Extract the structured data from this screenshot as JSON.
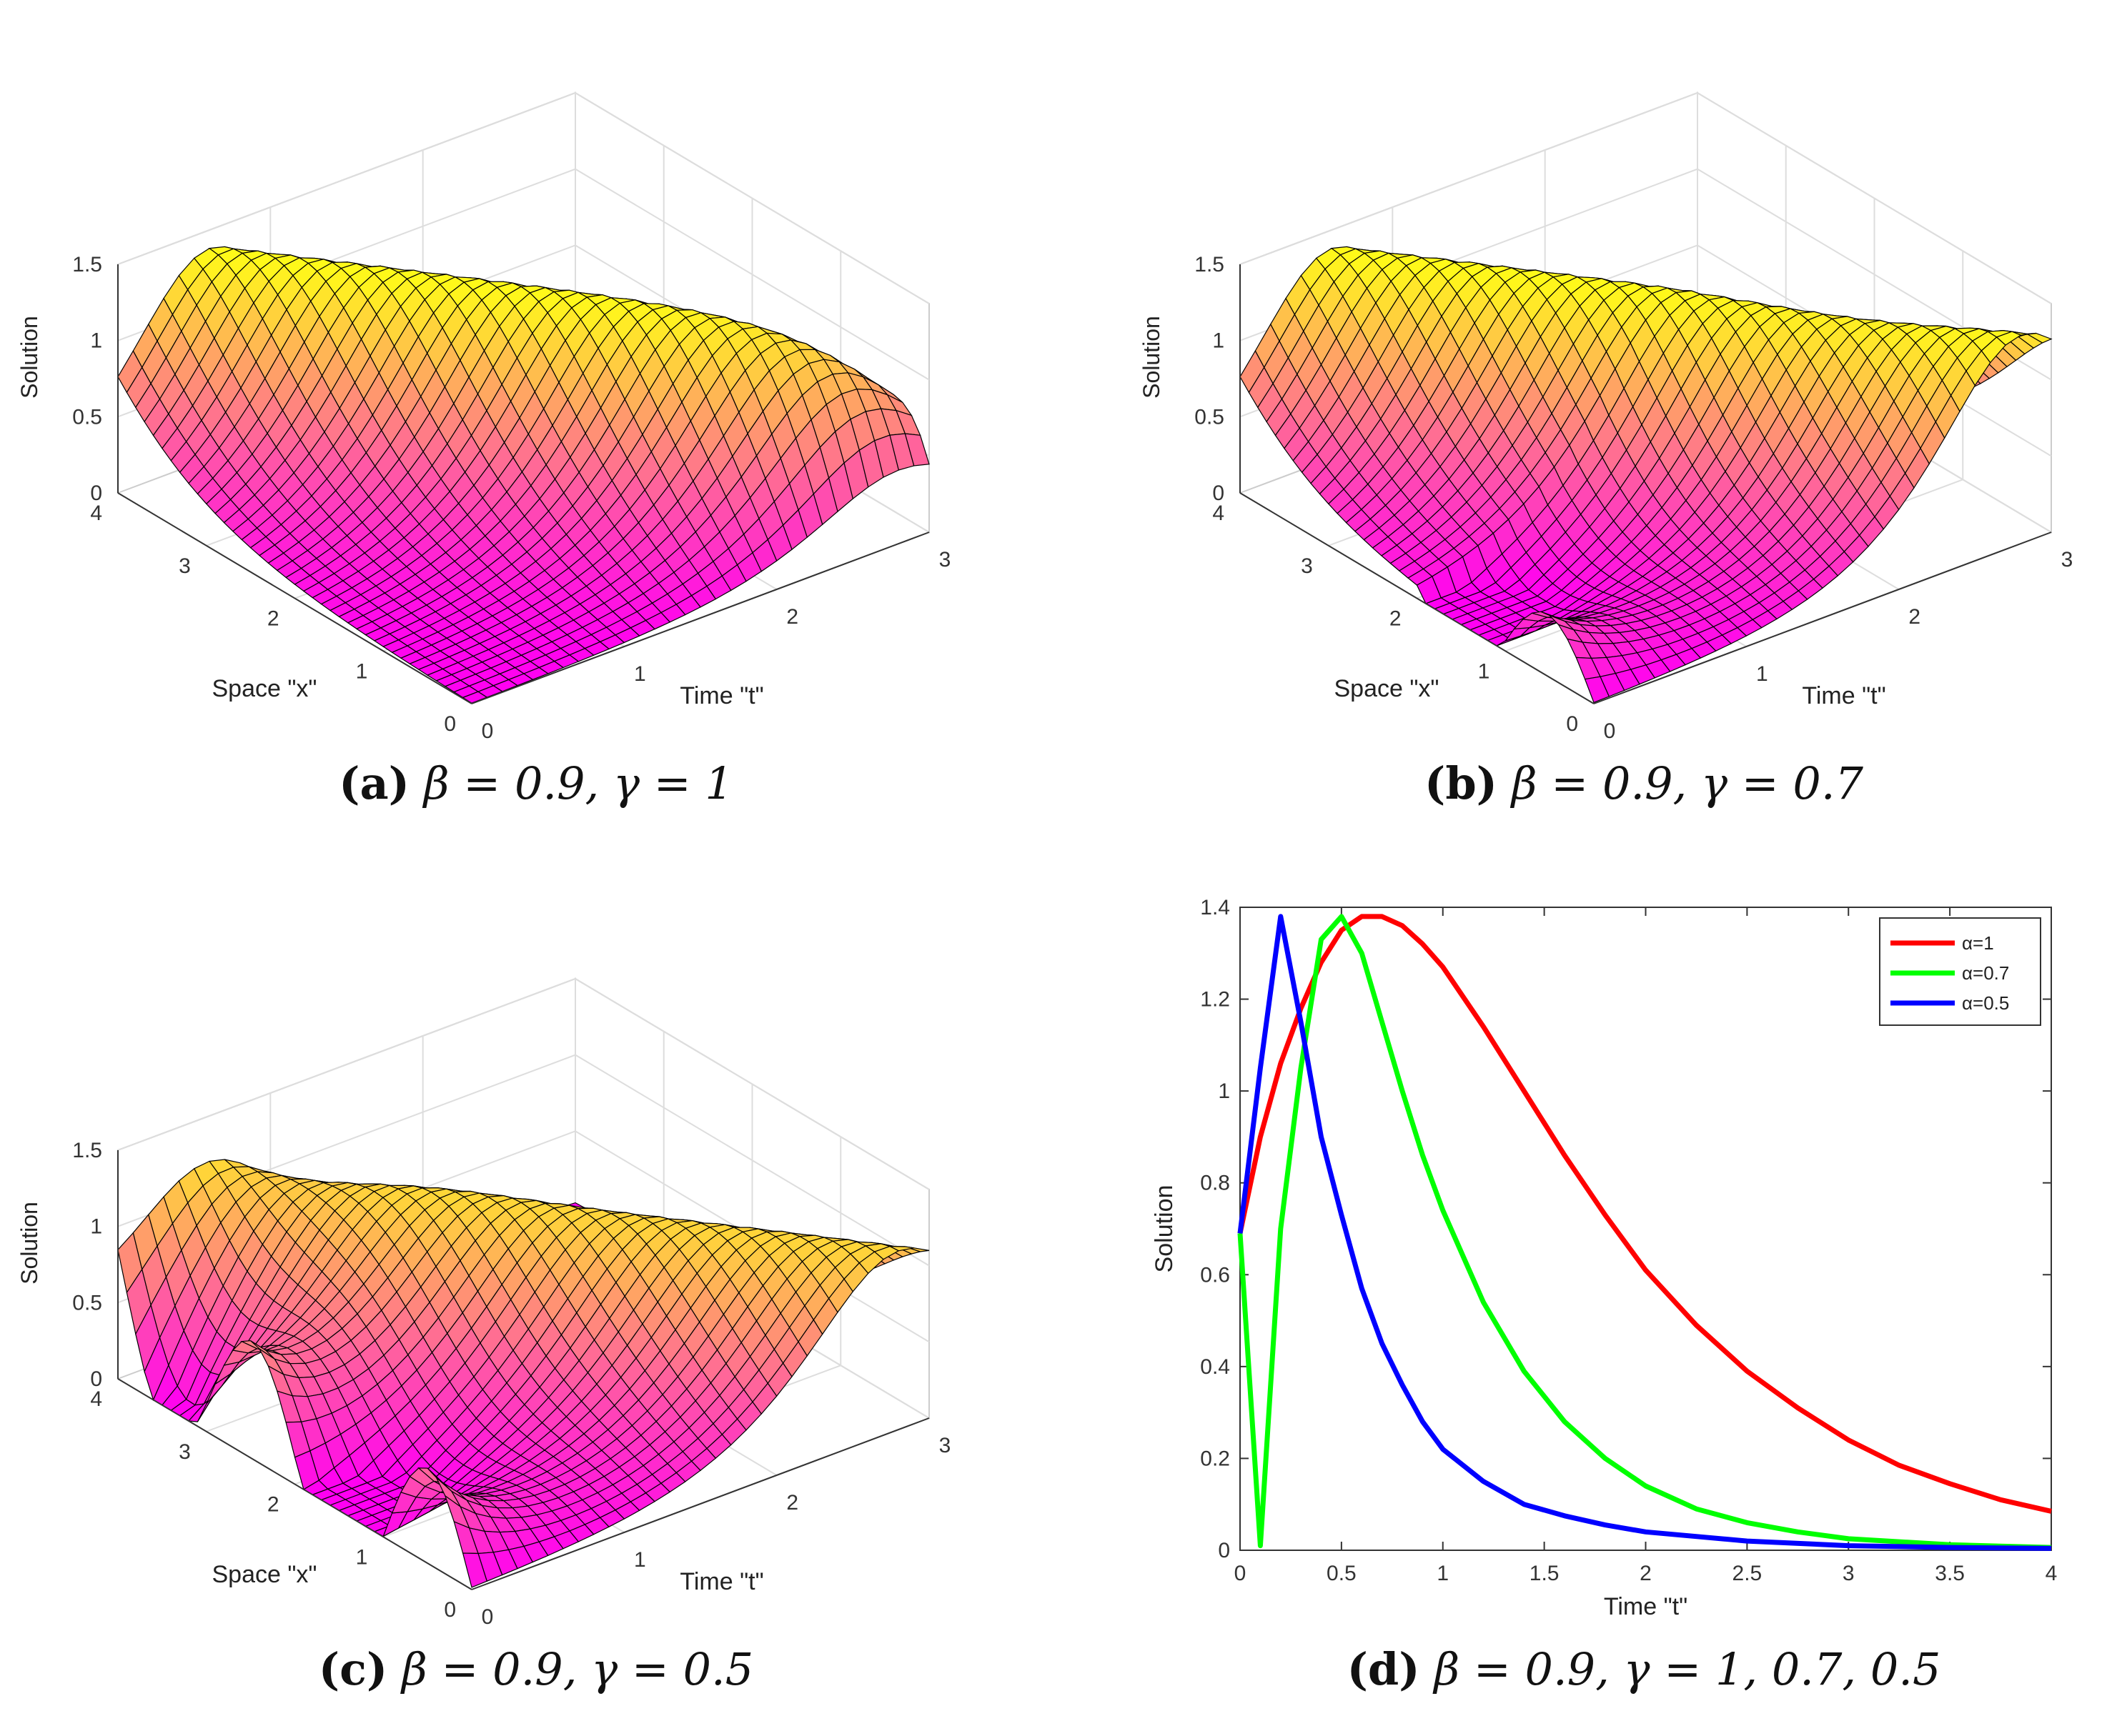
{
  "figure": {
    "panels": [
      {
        "id": "a",
        "caption": {
          "letter": "(a)",
          "params": "β = 0.9, γ = 1"
        },
        "chart": {
          "type": "surface3d",
          "zlabel": "Solution",
          "xlabel": "Space \"x\"",
          "ylabel": "Time \"t\"",
          "zticks": [
            "0",
            "0.5",
            "1",
            "1.5"
          ],
          "xticks": [
            "0",
            "1",
            "2",
            "3",
            "4"
          ],
          "yticks": [
            "0",
            "1",
            "2",
            "3"
          ]
        }
      },
      {
        "id": "b",
        "caption": {
          "letter": "(b)",
          "params": "β = 0.9, γ = 0.7"
        },
        "chart": {
          "type": "surface3d",
          "zlabel": "Solution",
          "xlabel": "Space \"x\"",
          "ylabel": "Time \"t\"",
          "zticks": [
            "0",
            "0.5",
            "1",
            "1.5"
          ],
          "xticks": [
            "0",
            "1",
            "2",
            "3",
            "4"
          ],
          "yticks": [
            "0",
            "1",
            "2",
            "3"
          ]
        }
      },
      {
        "id": "c",
        "caption": {
          "letter": "(c)",
          "params": "β = 0.9, γ = 0.5"
        },
        "chart": {
          "type": "surface3d",
          "zlabel": "Solution",
          "xlabel": "Space \"x\"",
          "ylabel": "Time \"t\"",
          "zticks": [
            "0",
            "0.5",
            "1",
            "1.5"
          ],
          "xticks": [
            "0",
            "1",
            "2",
            "3",
            "4"
          ],
          "yticks": [
            "0",
            "1",
            "2",
            "3"
          ]
        }
      },
      {
        "id": "d",
        "caption": {
          "letter": "(d)",
          "params": "β = 0.9, γ = 1, 0.7, 0.5"
        }
      }
    ]
  },
  "chart_data": [
    {
      "type": "surface3d",
      "panel": "a",
      "zlabel": "Solution",
      "xlabel": "Space \"x\"",
      "ylabel": "Time \"t\"",
      "zlim": [
        0,
        1.5
      ],
      "xlim": [
        0,
        4
      ],
      "ylim": [
        0,
        3
      ]
    },
    {
      "type": "surface3d",
      "panel": "b",
      "zlabel": "Solution",
      "xlabel": "Space \"x\"",
      "ylabel": "Time \"t\"",
      "zlim": [
        0,
        1.5
      ],
      "xlim": [
        0,
        4
      ],
      "ylim": [
        0,
        3
      ]
    },
    {
      "type": "surface3d",
      "panel": "c",
      "zlabel": "Solution",
      "xlabel": "Space \"x\"",
      "ylabel": "Time \"t\"",
      "zlim": [
        0,
        1.5
      ],
      "xlim": [
        0,
        4
      ],
      "ylim": [
        0,
        3
      ]
    },
    {
      "type": "line",
      "panel": "d",
      "xlabel": "Time \"t\"",
      "ylabel": "Solution",
      "xlim": [
        0,
        4
      ],
      "ylim": [
        0,
        1.4
      ],
      "xticks": [
        0,
        0.5,
        1,
        1.5,
        2,
        2.5,
        3,
        3.5,
        4
      ],
      "yticks": [
        0,
        0.2,
        0.4,
        0.6,
        0.8,
        1,
        1.2,
        1.4
      ],
      "legend_position": "top-right",
      "series": [
        {
          "name": "α=1",
          "color": "#ff0000",
          "x": [
            0,
            0.1,
            0.2,
            0.3,
            0.4,
            0.5,
            0.6,
            0.7,
            0.8,
            0.9,
            1.0,
            1.2,
            1.4,
            1.6,
            1.8,
            2.0,
            2.25,
            2.5,
            2.75,
            3.0,
            3.25,
            3.5,
            3.75,
            4.0
          ],
          "y": [
            0.69,
            0.9,
            1.06,
            1.18,
            1.28,
            1.35,
            1.38,
            1.38,
            1.36,
            1.32,
            1.27,
            1.14,
            1.0,
            0.86,
            0.73,
            0.61,
            0.49,
            0.39,
            0.31,
            0.24,
            0.185,
            0.145,
            0.11,
            0.085
          ]
        },
        {
          "name": "α=0.7",
          "color": "#00ff00",
          "x": [
            0,
            0.1,
            0.2,
            0.3,
            0.4,
            0.5,
            0.6,
            0.7,
            0.8,
            0.9,
            1.0,
            1.2,
            1.4,
            1.6,
            1.8,
            2.0,
            2.25,
            2.5,
            2.75,
            3.0,
            3.5,
            4.0
          ],
          "y": [
            0.69,
            0.01,
            0.7,
            1.05,
            1.33,
            1.38,
            1.3,
            1.15,
            1.0,
            0.86,
            0.74,
            0.54,
            0.39,
            0.28,
            0.2,
            0.14,
            0.09,
            0.06,
            0.04,
            0.025,
            0.012,
            0.006
          ]
        },
        {
          "name": "α=0.5",
          "color": "#0000ff",
          "x": [
            0,
            0.1,
            0.2,
            0.3,
            0.4,
            0.5,
            0.6,
            0.7,
            0.8,
            0.9,
            1.0,
            1.2,
            1.4,
            1.6,
            1.8,
            2.0,
            2.5,
            3.0,
            3.5,
            4.0
          ],
          "y": [
            0.69,
            1.05,
            1.38,
            1.15,
            0.9,
            0.73,
            0.57,
            0.45,
            0.36,
            0.28,
            0.22,
            0.15,
            0.1,
            0.075,
            0.055,
            0.04,
            0.02,
            0.01,
            0.006,
            0.004
          ]
        }
      ]
    }
  ]
}
